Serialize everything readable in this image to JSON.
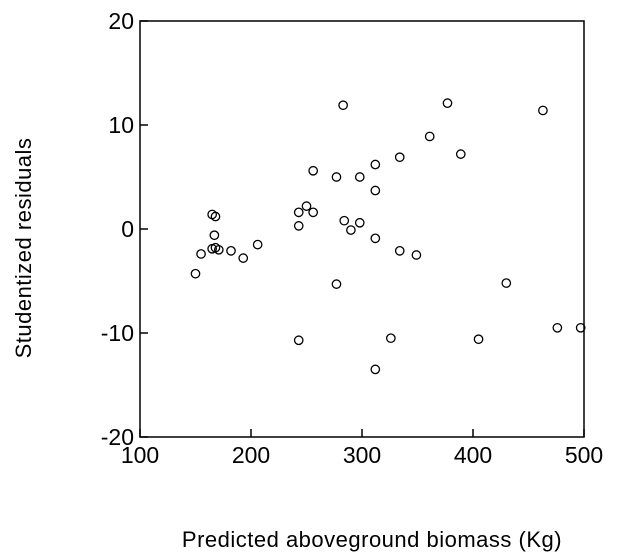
{
  "chart_data": {
    "type": "scatter",
    "xlabel": "Predicted aboveground biomass (Kg)",
    "ylabel": "Studentized residuals",
    "xlim": [
      100,
      500
    ],
    "ylim": [
      -20,
      20
    ],
    "x_ticks": [
      "100",
      "200",
      "300",
      "400",
      "500"
    ],
    "y_ticks": [
      "-20",
      "-10",
      "0",
      "10",
      "20"
    ],
    "grid": false,
    "marker": "open-circle",
    "colors": {
      "marker_stroke": "#000000",
      "axis": "#000000"
    },
    "series": [
      {
        "points": [
          [
            150,
            -4.3
          ],
          [
            155,
            -2.4
          ],
          [
            165,
            1.4
          ],
          [
            167,
            -0.6
          ],
          [
            168,
            1.2
          ],
          [
            165,
            -1.9
          ],
          [
            168,
            -1.8
          ],
          [
            171,
            -2.0
          ],
          [
            182,
            -2.1
          ],
          [
            193,
            -2.8
          ],
          [
            206,
            -1.5
          ],
          [
            243,
            1.6
          ],
          [
            243,
            0.3
          ],
          [
            250,
            2.2
          ],
          [
            256,
            1.6
          ],
          [
            256,
            5.6
          ],
          [
            277,
            5.0
          ],
          [
            284,
            0.8
          ],
          [
            290,
            -0.1
          ],
          [
            298,
            0.6
          ],
          [
            298,
            5.0
          ],
          [
            312,
            6.2
          ],
          [
            312,
            3.7
          ],
          [
            312,
            -0.9
          ],
          [
            283,
            11.9
          ],
          [
            334,
            6.9
          ],
          [
            334,
            -2.1
          ],
          [
            349,
            -2.5
          ],
          [
            361,
            8.9
          ],
          [
            377,
            12.1
          ],
          [
            389,
            7.2
          ],
          [
            243,
            -10.7
          ],
          [
            277,
            -5.3
          ],
          [
            312,
            -13.5
          ],
          [
            326,
            -10.5
          ],
          [
            405,
            -10.6
          ],
          [
            430,
            -5.2
          ],
          [
            463,
            11.4
          ],
          [
            476,
            -9.5
          ],
          [
            497,
            -9.5
          ]
        ]
      }
    ]
  }
}
